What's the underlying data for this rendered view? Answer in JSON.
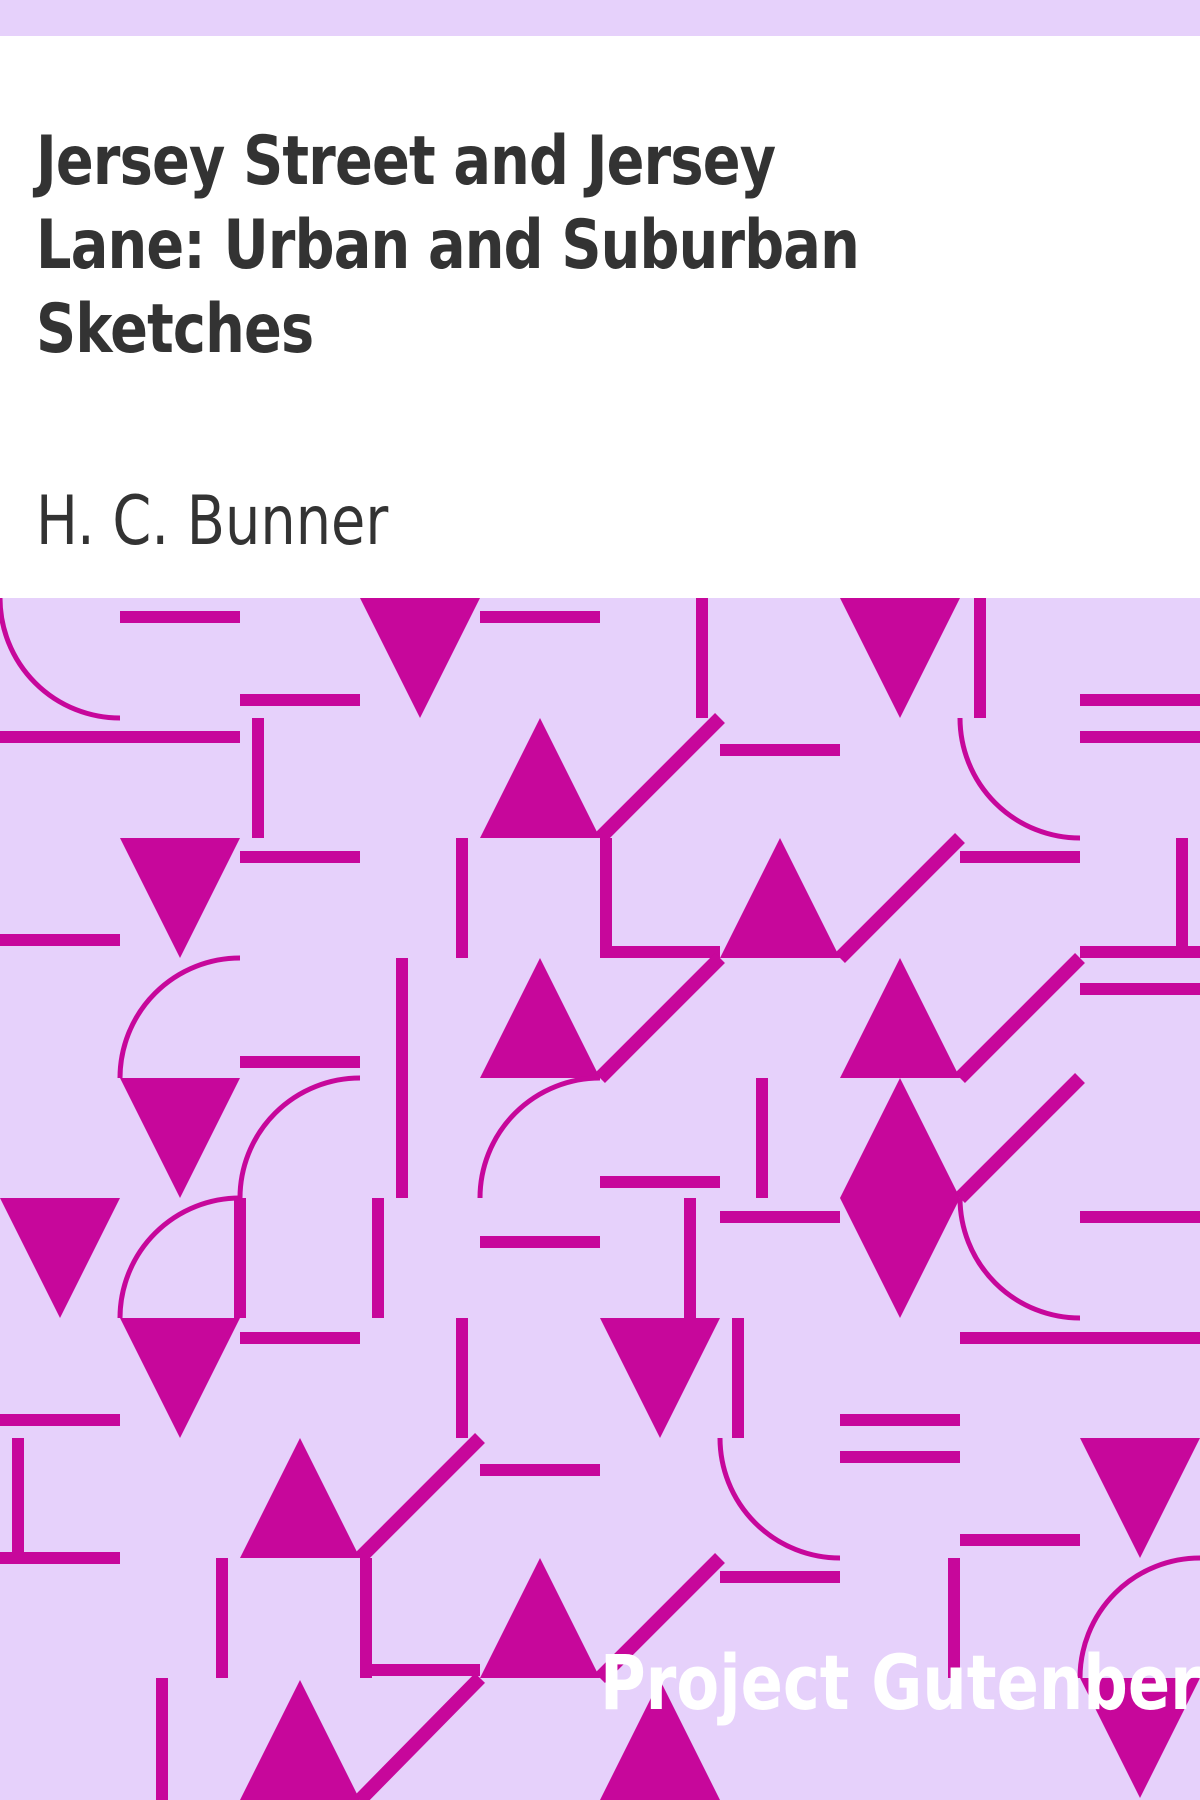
{
  "cover": {
    "title": "Jersey Street and Jersey Lane: Urban and Suburban Sketches",
    "author": "H. C. Bunner",
    "publisher_mark": "Project Gutenberg"
  },
  "colors": {
    "background": "#e6d1fb",
    "pattern": "#c7079b",
    "panel": "#ffffff",
    "text": "#333333",
    "publisher_text": "#ffffff"
  },
  "icons": [
    "geometric-pattern"
  ]
}
